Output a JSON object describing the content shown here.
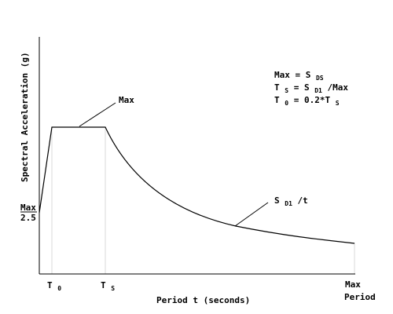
{
  "diagram": {
    "y_axis_label": "Spectral Acceleration (g)",
    "x_axis_label": "Period t (seconds)",
    "y_tick_max": "Max",
    "y_tick_2_5": "2.5",
    "plateau_label": "Max",
    "descending_label_main": "S",
    "descending_label_sub": "D1",
    "descending_label_suffix": "/t",
    "x_tick_t0_main": "T",
    "x_tick_t0_sub": "0",
    "x_tick_ts_main": "T",
    "x_tick_ts_sub": "S",
    "x_tick_max_line1": "Max",
    "x_tick_max_line2": "Period",
    "legend": {
      "line1_prefix": "Max = S",
      "line1_sub": "DS",
      "line2_main": "T",
      "line2_sub": "S",
      "line2_mid": "= S",
      "line2_sub2": "D1",
      "line2_suffix": "/Max",
      "line3_main": "T",
      "line3_sub": "0",
      "line3_suffix": "= 0.2*T",
      "line3_sub2": "S"
    },
    "colors": {
      "axis": "#000000",
      "guide": "#d9d9d9",
      "background": "#ffffff"
    }
  }
}
